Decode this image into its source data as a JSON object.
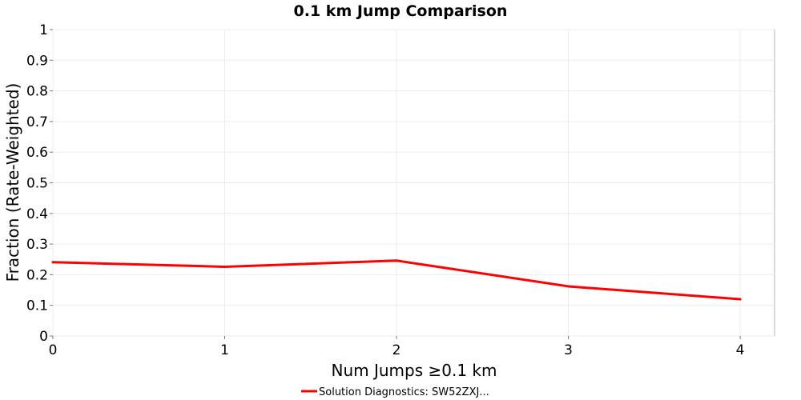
{
  "chart_data": {
    "type": "line",
    "title": "0.1 km Jump Comparison",
    "xlabel": "Num Jumps ≥0.1 km",
    "ylabel": "Fraction (Rate-Weighted)",
    "xlim": [
      0,
      4.2
    ],
    "ylim": [
      0,
      1
    ],
    "x_ticks": [
      "0",
      "1",
      "2",
      "3",
      "4"
    ],
    "y_ticks": [
      "0",
      "0.1",
      "0.2",
      "0.3",
      "0.4",
      "0.5",
      "0.6",
      "0.7",
      "0.8",
      "0.9",
      "1"
    ],
    "grid": true,
    "legend_position": "bottom-center",
    "series": [
      {
        "name": "Solution Diagnostics: SW52ZXJ...",
        "color": "#ff0000",
        "x": [
          0,
          1,
          2,
          3,
          4
        ],
        "y": [
          0.241,
          0.226,
          0.246,
          0.162,
          0.12
        ]
      }
    ]
  }
}
